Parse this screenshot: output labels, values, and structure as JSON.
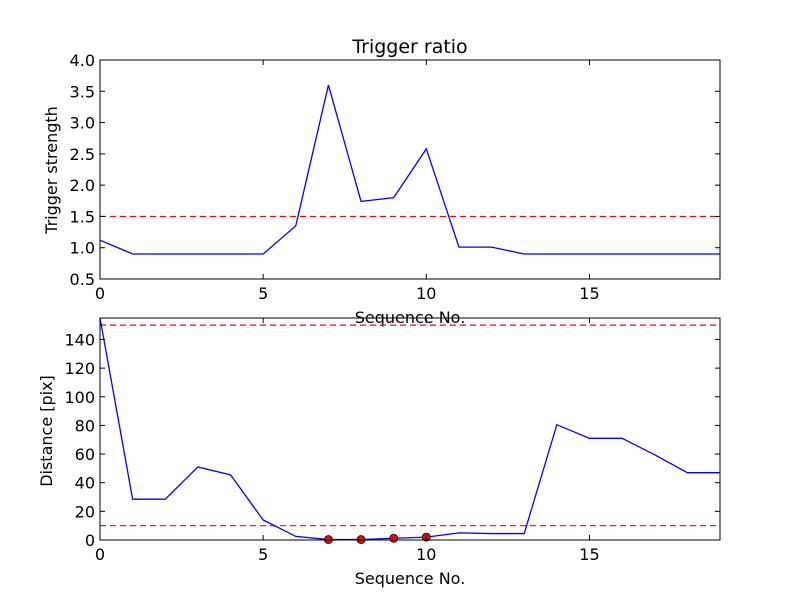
{
  "chart_data": [
    {
      "type": "line",
      "title": "Trigger ratio",
      "xlabel": "Sequence No.",
      "ylabel": "Trigger strength",
      "xlim": [
        0,
        19
      ],
      "ylim": [
        0.5,
        4.0
      ],
      "xticks": [
        0,
        5,
        10,
        15
      ],
      "xtick_labels": [
        "0",
        "5",
        "10",
        "15"
      ],
      "yticks": [
        0.5,
        1.0,
        1.5,
        2.0,
        2.5,
        3.0,
        3.5,
        4.0
      ],
      "ytick_labels": [
        "0.5",
        "1.0",
        "1.5",
        "2.0",
        "2.5",
        "3.0",
        "3.5",
        "4.0"
      ],
      "grid": false,
      "series": [
        {
          "color": "#0000ff",
          "x": [
            0,
            1,
            2,
            3,
            4,
            5,
            6,
            7,
            8,
            9,
            10,
            11,
            12,
            13,
            14,
            15,
            16,
            17,
            18,
            19
          ],
          "y": [
            1.12,
            0.9,
            0.9,
            0.9,
            0.9,
            0.9,
            1.35,
            3.6,
            1.74,
            1.8,
            2.58,
            1.01,
            1.01,
            0.9,
            0.9,
            0.9,
            0.9,
            0.9,
            0.9,
            0.9
          ]
        }
      ],
      "thresholds": [
        {
          "y": 1.5,
          "color": "#ff0000",
          "style": "dashed"
        }
      ],
      "markers": []
    },
    {
      "type": "line",
      "title": "",
      "xlabel": "Sequence No.",
      "ylabel": "Distance [pix]",
      "xlim": [
        0,
        19
      ],
      "ylim": [
        0,
        155
      ],
      "xticks": [
        0,
        5,
        10,
        15
      ],
      "xtick_labels": [
        "0",
        "5",
        "10",
        "15"
      ],
      "yticks": [
        0,
        20,
        40,
        60,
        80,
        100,
        120,
        140
      ],
      "ytick_labels": [
        "0",
        "20",
        "40",
        "60",
        "80",
        "100",
        "120",
        "140"
      ],
      "grid": false,
      "series": [
        {
          "color": "#0000ff",
          "x": [
            0,
            1,
            2,
            3,
            4,
            5,
            6,
            7,
            8,
            9,
            10,
            11,
            12,
            13,
            14,
            15,
            16,
            17,
            18,
            19
          ],
          "y": [
            155,
            28.5,
            28.5,
            51,
            45.5,
            14,
            2.5,
            0.3,
            0.3,
            1.2,
            2,
            5,
            4.5,
            4.5,
            80.5,
            71,
            71,
            59.5,
            47,
            47
          ]
        }
      ],
      "thresholds": [
        {
          "y": 150,
          "color": "#ff0000",
          "style": "dashed"
        },
        {
          "y": 10,
          "color": "#ff0000",
          "style": "dashed"
        }
      ],
      "markers": [
        {
          "x": 7,
          "y": 0.3,
          "color": "#ff0000"
        },
        {
          "x": 8,
          "y": 0.3,
          "color": "#ff0000"
        },
        {
          "x": 9,
          "y": 1.2,
          "color": "#ff0000"
        },
        {
          "x": 10,
          "y": 2,
          "color": "#ff0000"
        }
      ]
    }
  ]
}
